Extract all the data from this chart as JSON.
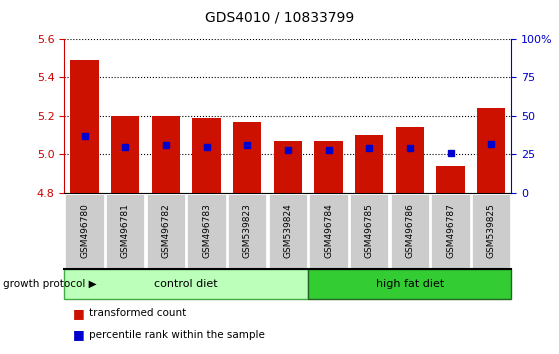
{
  "title": "GDS4010 / 10833799",
  "samples": [
    "GSM496780",
    "GSM496781",
    "GSM496782",
    "GSM496783",
    "GSM539823",
    "GSM539824",
    "GSM496784",
    "GSM496785",
    "GSM496786",
    "GSM496787",
    "GSM539825"
  ],
  "bar_values": [
    5.49,
    5.2,
    5.2,
    5.19,
    5.17,
    5.07,
    5.07,
    5.1,
    5.14,
    4.94,
    5.24
  ],
  "percentile_ranks": [
    37,
    30,
    31,
    30,
    31,
    28,
    28,
    29,
    29,
    26,
    32
  ],
  "y_min": 4.8,
  "y_max": 5.6,
  "y_ticks": [
    4.8,
    5.0,
    5.2,
    5.4,
    5.6
  ],
  "y2_ticks": [
    0,
    25,
    50,
    75,
    100
  ],
  "bar_color": "#cc1100",
  "blue_color": "#0000cc",
  "control_diet_count": 6,
  "control_label": "control diet",
  "highfat_label": "high fat diet",
  "protocol_label": "growth protocol",
  "control_color": "#bbffbb",
  "highfat_color": "#33cc33",
  "legend1": "transformed count",
  "legend2": "percentile rank within the sample",
  "left_color": "#cc0000",
  "right_color": "#0000cc",
  "bg_color": "#ffffff",
  "tick_bg": "#cccccc",
  "grid_color": "#000000"
}
